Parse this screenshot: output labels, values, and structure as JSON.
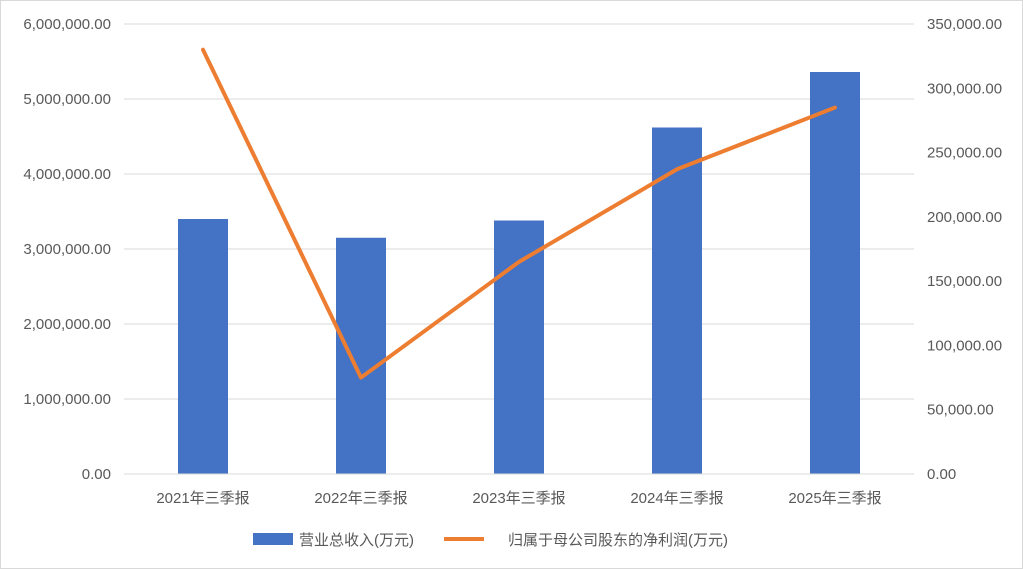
{
  "chart_data": {
    "type": "bar",
    "categories": [
      "2021年三季报",
      "2022年三季报",
      "2023年三季报",
      "2024年三季报",
      "2025年三季报"
    ],
    "series": [
      {
        "name": "营业总收入(万元)",
        "type": "bar",
        "axis": "left",
        "color": "#4472C4",
        "values": [
          3400000,
          3150000,
          3380000,
          4620000,
          5360000
        ]
      },
      {
        "name": "归属于母公司股东的净利润(万元)",
        "type": "line",
        "axis": "right",
        "color": "#ED7D31",
        "values": [
          330000,
          75000,
          165000,
          237000,
          285000
        ]
      }
    ],
    "y_left": {
      "ylim": [
        0,
        6000000
      ],
      "ticks": [
        0,
        1000000,
        2000000,
        3000000,
        4000000,
        5000000,
        6000000
      ],
      "tick_labels": [
        "0.00",
        "1,000,000.00",
        "2,000,000.00",
        "3,000,000.00",
        "4,000,000.00",
        "5,000,000.00",
        "6,000,000.00"
      ]
    },
    "y_right": {
      "ylim": [
        0,
        350000
      ],
      "ticks": [
        0,
        50000,
        100000,
        150000,
        200000,
        250000,
        300000,
        350000
      ],
      "tick_labels": [
        "0.00",
        "50,000.00",
        "100,000.00",
        "150,000.00",
        "200,000.00",
        "250,000.00",
        "300,000.00",
        "350,000.00"
      ]
    },
    "grid": true,
    "legend": "bottom",
    "title": "",
    "xlabel": "",
    "ylabel": ""
  }
}
